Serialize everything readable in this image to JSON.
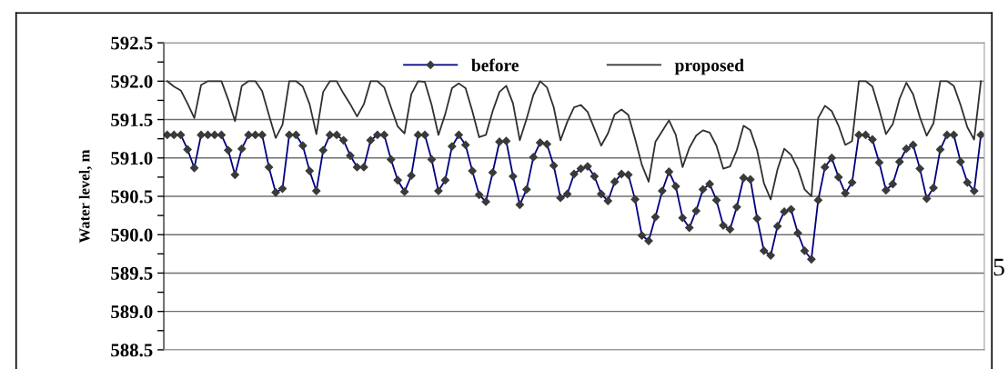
{
  "chart_data": {
    "type": "line",
    "ylabel": "Water level, m",
    "categories": [
      null,
      null,
      null,
      null,
      null,
      null,
      null,
      null,
      null,
      null,
      null,
      null,
      null,
      null,
      null,
      null,
      null,
      null,
      null,
      null,
      null,
      null,
      null,
      null,
      null,
      null,
      null,
      null,
      null,
      null,
      null,
      null,
      null,
      null,
      null,
      null,
      null,
      null,
      null,
      null,
      null,
      null,
      null,
      null,
      null,
      null,
      null,
      null,
      null,
      null,
      null,
      null,
      null,
      null,
      null,
      null,
      null,
      null,
      null,
      null,
      null,
      null,
      null,
      null,
      null,
      null,
      null,
      null,
      null,
      null,
      null,
      null,
      null,
      null,
      null,
      null,
      null,
      null,
      null,
      null,
      null,
      null,
      null,
      null,
      null,
      null,
      null,
      null,
      null,
      null,
      null,
      null,
      null,
      null,
      null,
      null,
      null,
      null,
      null,
      null,
      null,
      null,
      null,
      null,
      null,
      null,
      null,
      null,
      null,
      null,
      null,
      null,
      null,
      null,
      null,
      null,
      null,
      null,
      null,
      null,
      null
    ],
    "series": [
      {
        "name": "before",
        "color": "#000080",
        "marker": "diamond",
        "values": [
          591.3,
          591.3,
          591.3,
          591.11,
          590.87,
          591.3,
          591.3,
          591.3,
          591.3,
          591.1,
          590.78,
          591.12,
          591.3,
          591.3,
          591.3,
          590.88,
          590.55,
          590.6,
          591.3,
          591.3,
          591.16,
          590.83,
          590.57,
          591.1,
          591.3,
          591.3,
          591.23,
          591.03,
          590.88,
          590.88,
          591.23,
          591.3,
          591.3,
          590.98,
          590.71,
          590.56,
          590.77,
          591.3,
          591.3,
          590.98,
          590.57,
          590.71,
          591.15,
          591.3,
          591.17,
          590.83,
          590.52,
          590.43,
          590.81,
          591.21,
          591.22,
          590.76,
          590.39,
          590.59,
          591.01,
          591.2,
          591.18,
          590.9,
          590.48,
          590.53,
          590.79,
          590.86,
          590.89,
          590.76,
          590.53,
          590.44,
          590.69,
          590.79,
          590.78,
          590.46,
          589.99,
          589.92,
          590.23,
          590.57,
          590.82,
          590.63,
          590.22,
          590.09,
          590.31,
          590.59,
          590.66,
          590.45,
          590.12,
          590.07,
          590.36,
          590.74,
          590.72,
          590.21,
          589.79,
          589.73,
          590.11,
          590.3,
          590.33,
          590.02,
          589.79,
          589.68,
          590.45,
          590.88,
          591.0,
          590.75,
          590.54,
          590.68,
          591.3,
          591.3,
          591.24,
          590.94,
          590.58,
          590.66,
          590.95,
          591.12,
          591.17,
          590.86,
          590.47,
          590.61,
          591.11,
          591.3,
          591.3,
          590.95,
          590.68,
          590.57,
          591.3
        ]
      },
      {
        "name": "proposed",
        "color": "#303030",
        "marker": "none",
        "values": [
          592.0,
          591.93,
          591.88,
          591.71,
          591.52,
          591.95,
          592.0,
          592.0,
          592.0,
          591.76,
          591.48,
          591.94,
          592.0,
          592.0,
          591.87,
          591.56,
          591.26,
          591.43,
          592.0,
          592.0,
          591.93,
          591.7,
          591.31,
          591.86,
          592.0,
          592.0,
          591.84,
          591.7,
          591.54,
          591.7,
          592.0,
          592.0,
          591.92,
          591.66,
          591.41,
          591.32,
          591.83,
          592.0,
          591.99,
          591.69,
          591.3,
          591.57,
          591.91,
          591.97,
          591.91,
          591.61,
          591.27,
          591.3,
          591.61,
          591.86,
          591.94,
          591.71,
          591.23,
          591.51,
          591.82,
          592.0,
          591.92,
          591.66,
          591.23,
          591.47,
          591.66,
          591.69,
          591.6,
          591.38,
          591.16,
          591.32,
          591.57,
          591.63,
          591.56,
          591.25,
          590.91,
          590.69,
          591.21,
          591.35,
          591.49,
          591.3,
          590.88,
          591.13,
          591.29,
          591.36,
          591.33,
          591.16,
          590.86,
          590.89,
          591.1,
          591.42,
          591.36,
          591.1,
          590.67,
          590.46,
          590.85,
          591.12,
          591.04,
          590.86,
          590.59,
          590.5,
          591.52,
          591.68,
          591.61,
          591.42,
          591.17,
          591.22,
          592.0,
          592.0,
          591.93,
          591.63,
          591.31,
          591.44,
          591.77,
          591.98,
          591.83,
          591.53,
          591.29,
          591.45,
          592.0,
          592.0,
          591.94,
          591.69,
          591.4,
          591.24,
          592.0
        ]
      }
    ],
    "ylim": [
      588.5,
      592.5
    ],
    "yticks": [
      {
        "value": 588.5,
        "label": "588.5"
      },
      {
        "value": 588.75,
        "label": null
      },
      {
        "value": 589,
        "label": "589.0"
      },
      {
        "value": 589.25,
        "label": null
      },
      {
        "value": 589.5,
        "label": "589.5"
      },
      {
        "value": 589.75,
        "label": null
      },
      {
        "value": 590,
        "label": "590.0"
      },
      {
        "value": 590.25,
        "label": null
      },
      {
        "value": 590.5,
        "label": "590.5"
      },
      {
        "value": 590.75,
        "label": null
      },
      {
        "value": 591,
        "label": "591.0"
      },
      {
        "value": 591.25,
        "label": null
      },
      {
        "value": 591.5,
        "label": "591.5"
      },
      {
        "value": 591.75,
        "label": null
      },
      {
        "value": 592,
        "label": "592.0"
      },
      {
        "value": 592.25,
        "label": null
      },
      {
        "value": 592.5,
        "label": "592.5"
      }
    ],
    "grid": "y",
    "legend": "top",
    "tick_labels": "y",
    "line_style": "solid",
    "annotations": [
      "5"
    ]
  }
}
